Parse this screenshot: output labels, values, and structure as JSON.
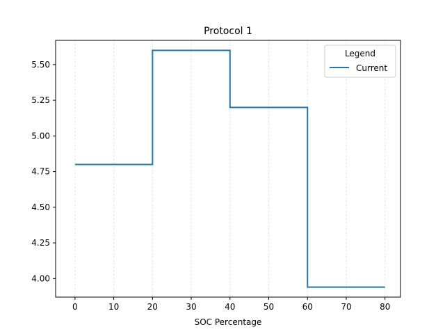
{
  "chart_data": {
    "type": "line",
    "drawstyle": "steps-post",
    "title": "Protocol 1",
    "xlabel": "SOC Percentage",
    "ylabel": "",
    "xlim": [
      -5,
      84
    ],
    "ylim": [
      3.87,
      5.67
    ],
    "xticks": [
      0,
      10,
      20,
      30,
      40,
      50,
      60,
      70,
      80
    ],
    "yticks": [
      4.0,
      4.25,
      4.5,
      4.75,
      5.0,
      5.25,
      5.5
    ],
    "grid": {
      "x": true,
      "y": false,
      "style": "light dashed vertical"
    },
    "legend": {
      "title": "Legend",
      "placement": "top-right"
    },
    "series": [
      {
        "name": "Current",
        "color": "#1f77b4",
        "x": [
          0,
          20,
          40,
          60,
          80
        ],
        "y": [
          4.8,
          5.6,
          5.2,
          3.94,
          3.94
        ]
      }
    ]
  }
}
